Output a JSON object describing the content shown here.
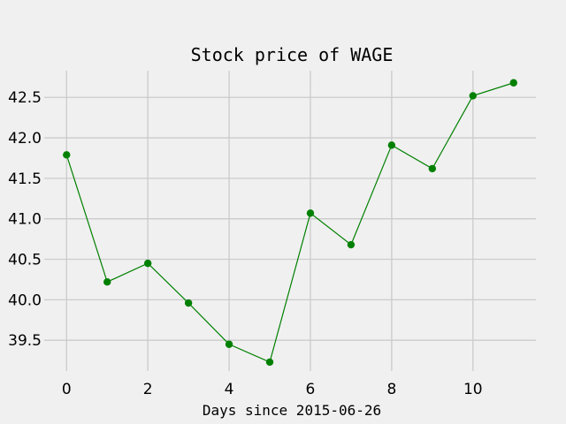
{
  "chart_data": {
    "type": "line",
    "title": "Stock price of WAGE",
    "xlabel": "Days since 2015-06-26",
    "ylabel": "",
    "x": [
      0,
      1,
      2,
      3,
      4,
      5,
      6,
      7,
      8,
      9,
      10,
      11
    ],
    "series": [
      {
        "values": [
          41.79,
          40.22,
          40.45,
          39.96,
          39.45,
          39.23,
          41.07,
          40.68,
          41.91,
          41.62,
          42.52,
          42.68
        ],
        "color": "#008000",
        "marker": "circle"
      }
    ],
    "xlim": [
      -0.55,
      11.55
    ],
    "ylim": [
      39.12,
      42.83
    ],
    "xticks": [
      0,
      2,
      4,
      6,
      8,
      10
    ],
    "yticks": [
      39.5,
      40.0,
      40.5,
      41.0,
      41.5,
      42.0,
      42.5
    ],
    "xtick_labels": [
      "0",
      "2",
      "4",
      "6",
      "8",
      "10"
    ],
    "ytick_labels": [
      "39.5",
      "40.0",
      "40.5",
      "41.0",
      "41.5",
      "42.0",
      "42.5"
    ],
    "grid": true,
    "background": "#f0f0f0",
    "grid_color": "#cbcbcb"
  }
}
